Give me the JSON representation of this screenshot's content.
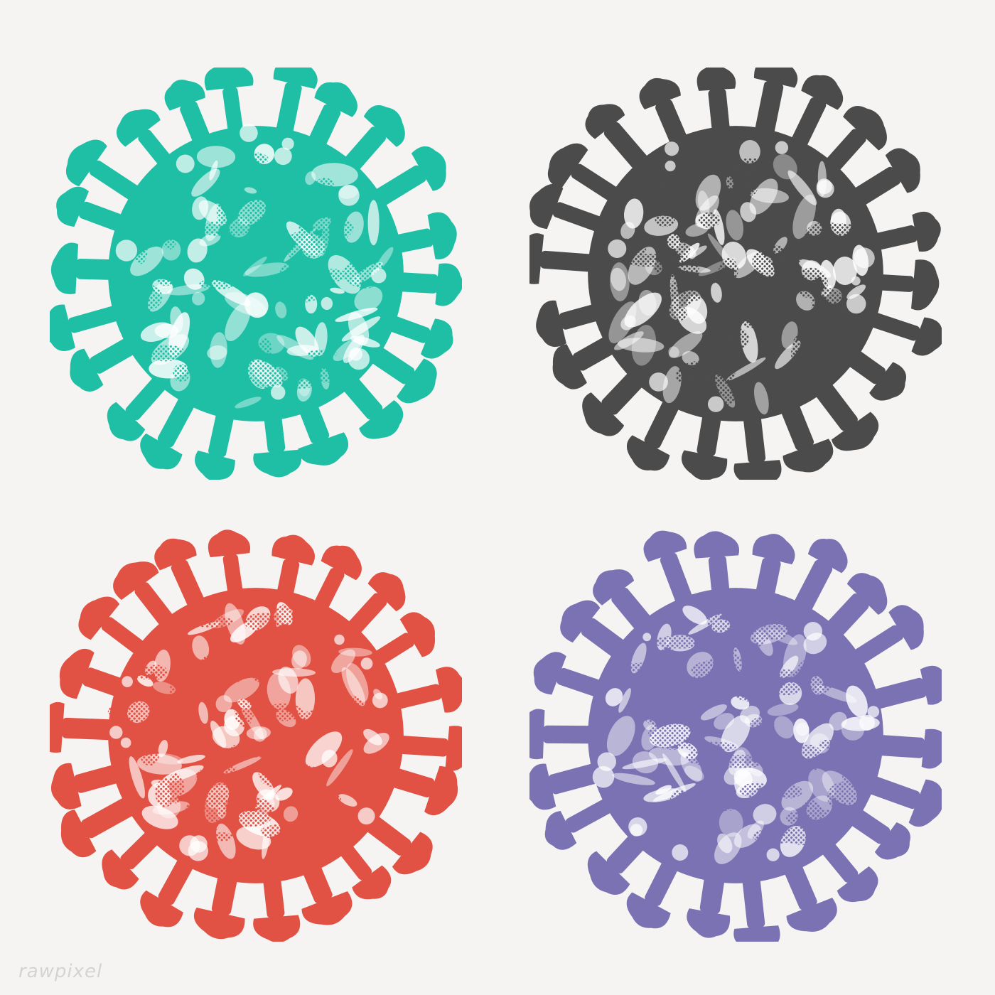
{
  "illustrations": [
    {
      "name": "teal",
      "color": "#1fbfa6",
      "icon": "coronavirus-icon"
    },
    {
      "name": "gray",
      "color": "#4b4b4b",
      "icon": "coronavirus-icon"
    },
    {
      "name": "red",
      "color": "#e25244",
      "icon": "coronavirus-icon"
    },
    {
      "name": "purple",
      "color": "#7a72b2",
      "icon": "coronavirus-icon"
    }
  ],
  "background": "#f5f4f2",
  "watermark": "rawpixel"
}
